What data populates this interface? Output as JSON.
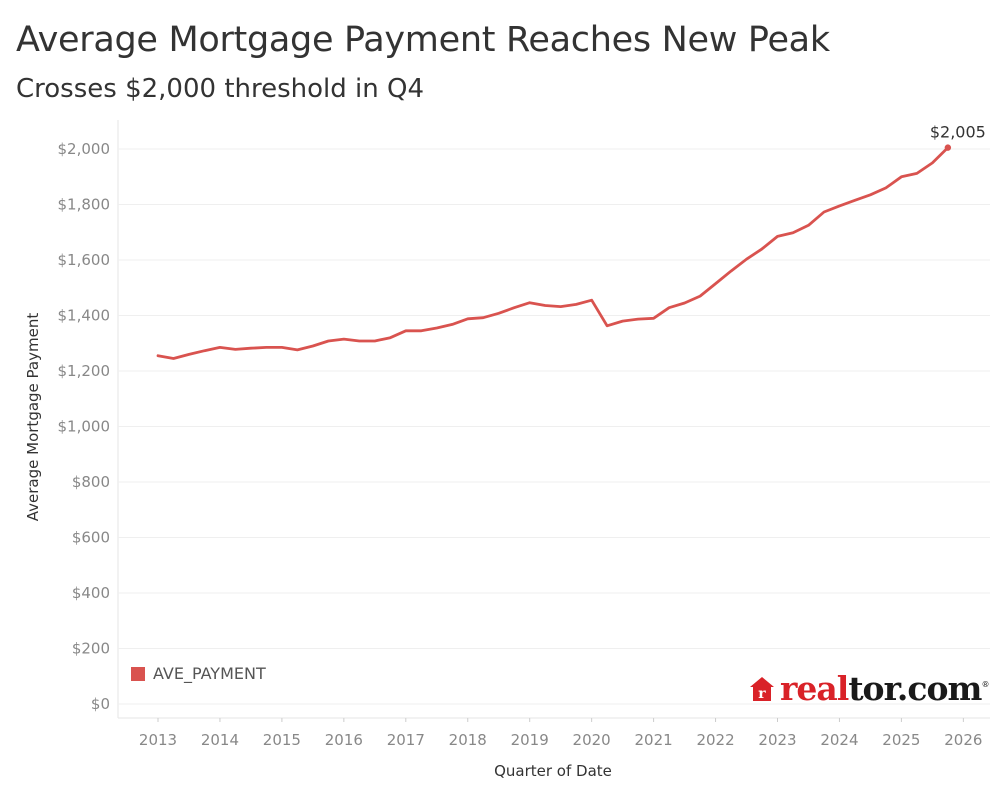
{
  "header": {
    "title": "Average Mortgage Payment Reaches New Peak",
    "subtitle": "Crosses $2,000 threshold in Q4"
  },
  "legend": {
    "label": "AVE_PAYMENT",
    "color": "#d9534f"
  },
  "branding": {
    "logo_text_red": "real",
    "logo_text_dark": "tor.com",
    "logo_mark": "®",
    "logo_color": "#d92228"
  },
  "chart_data": {
    "type": "line",
    "xlabel": "Quarter of Date",
    "ylabel": "Average Mortgage Payment",
    "x_ticks": [
      "2013",
      "2014",
      "2015",
      "2016",
      "2017",
      "2018",
      "2019",
      "2020",
      "2021",
      "2022",
      "2023",
      "2024",
      "2025",
      "2026"
    ],
    "y_ticks": [
      "$0",
      "$200",
      "$400",
      "$600",
      "$800",
      "$1,000",
      "$1,200",
      "$1,400",
      "$1,600",
      "$1,800",
      "$2,000"
    ],
    "ylim": [
      0,
      2000
    ],
    "grid": true,
    "legend_position": "bottom-left",
    "annotation": {
      "label": "$2,005",
      "x": "2025-Q4",
      "y": 2005
    },
    "series": [
      {
        "name": "AVE_PAYMENT",
        "color": "#d9534f",
        "x": [
          "2013-Q1",
          "2013-Q2",
          "2013-Q3",
          "2013-Q4",
          "2014-Q1",
          "2014-Q2",
          "2014-Q3",
          "2014-Q4",
          "2015-Q1",
          "2015-Q2",
          "2015-Q3",
          "2015-Q4",
          "2016-Q1",
          "2016-Q2",
          "2016-Q3",
          "2016-Q4",
          "2017-Q1",
          "2017-Q2",
          "2017-Q3",
          "2017-Q4",
          "2018-Q1",
          "2018-Q2",
          "2018-Q3",
          "2018-Q4",
          "2019-Q1",
          "2019-Q2",
          "2019-Q3",
          "2019-Q4",
          "2020-Q1",
          "2020-Q2",
          "2020-Q3",
          "2020-Q4",
          "2021-Q1",
          "2021-Q2",
          "2021-Q3",
          "2021-Q4",
          "2022-Q1",
          "2022-Q2",
          "2022-Q3",
          "2022-Q4",
          "2023-Q1",
          "2023-Q2",
          "2023-Q3",
          "2023-Q4",
          "2024-Q1",
          "2024-Q2",
          "2024-Q3",
          "2024-Q4",
          "2025-Q1",
          "2025-Q2",
          "2025-Q3",
          "2025-Q4"
        ],
        "values": [
          1255,
          1245,
          1260,
          1273,
          1285,
          1278,
          1282,
          1285,
          1285,
          1276,
          1290,
          1308,
          1315,
          1308,
          1308,
          1320,
          1345,
          1345,
          1355,
          1368,
          1388,
          1392,
          1408,
          1428,
          1446,
          1436,
          1432,
          1440,
          1455,
          1363,
          1380,
          1387,
          1390,
          1428,
          1445,
          1470,
          1515,
          1560,
          1603,
          1640,
          1685,
          1698,
          1725,
          1773,
          1795,
          1815,
          1835,
          1860,
          1900,
          1912,
          1950,
          2005
        ]
      }
    ]
  }
}
